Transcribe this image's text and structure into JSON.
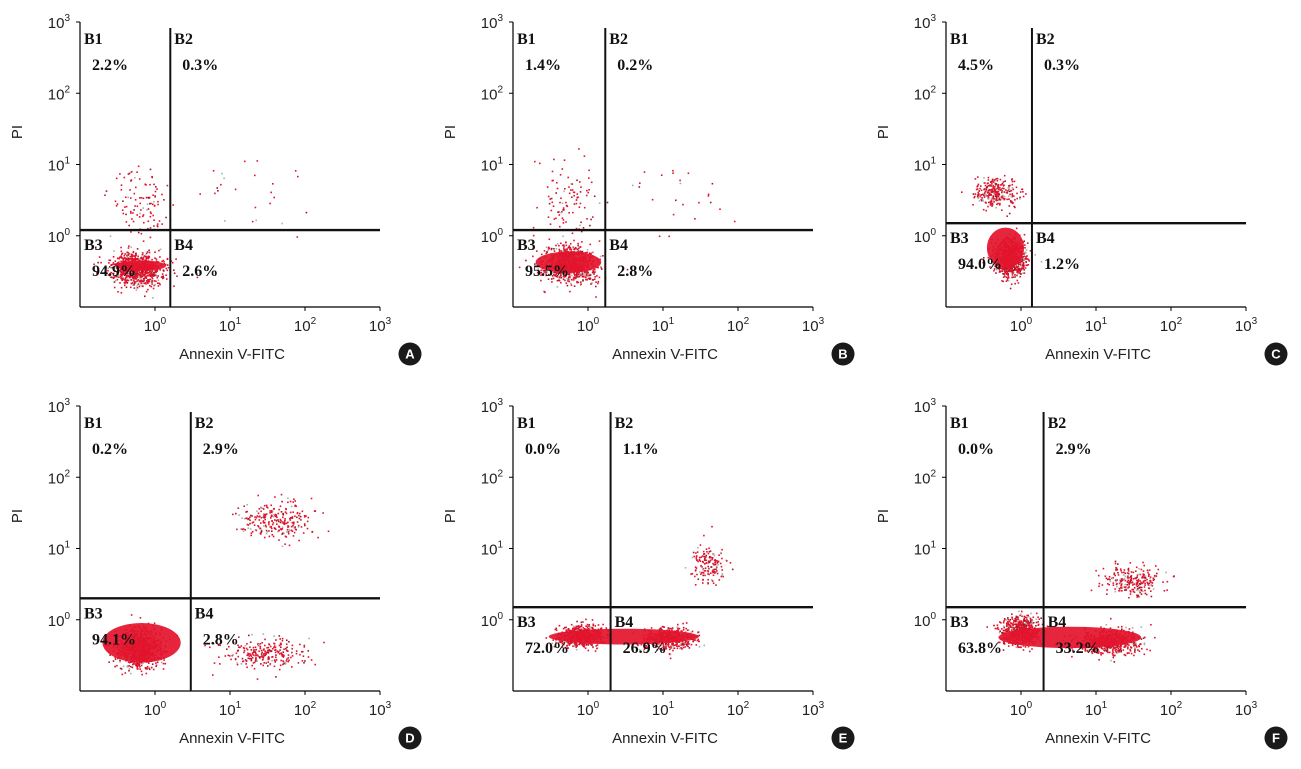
{
  "chart_data": [
    {
      "type": "scatter",
      "panel": "A",
      "xlabel": "Annexin V-FITC",
      "ylabel": "PI",
      "xscale": "log",
      "yscale": "log",
      "xlim": [
        0.1,
        1000
      ],
      "ylim": [
        0.1,
        1000
      ],
      "xticks": [
        "10^0",
        "10^1",
        "10^2",
        "10^3"
      ],
      "yticks": [
        "10^0",
        "10^1",
        "10^2",
        "10^3"
      ],
      "gates": {
        "x": 1.6,
        "y": 1.2
      },
      "quadrants": [
        {
          "name": "B1",
          "percent": "2.2%"
        },
        {
          "name": "B2",
          "percent": "0.3%"
        },
        {
          "name": "B3",
          "percent": "94.9%"
        },
        {
          "name": "B4",
          "percent": "2.6%"
        }
      ],
      "clusters": [
        {
          "cx": 0.55,
          "cy": 0.35,
          "sx": 2.2,
          "sy": 1.7,
          "n": 900
        },
        {
          "cx": 0.6,
          "cy": 3.0,
          "sx": 2.5,
          "sy": 3.0,
          "n": 110
        },
        {
          "cx": 15,
          "cy": 5,
          "sx": 6,
          "sy": 5,
          "n": 25
        }
      ],
      "dense": {
        "x1": 0.3,
        "x2": 1.4,
        "y1": 0.32,
        "y2": 0.45
      }
    },
    {
      "type": "scatter",
      "panel": "B",
      "xlabel": "Annexin V-FITC",
      "ylabel": "PI",
      "xscale": "log",
      "yscale": "log",
      "xlim": [
        0.1,
        1000
      ],
      "ylim": [
        0.1,
        1000
      ],
      "xticks": [
        "10^0",
        "10^1",
        "10^2",
        "10^3"
      ],
      "yticks": [
        "10^0",
        "10^1",
        "10^2",
        "10^3"
      ],
      "gates": {
        "x": 1.7,
        "y": 1.2
      },
      "quadrants": [
        {
          "name": "B1",
          "percent": "1.4%"
        },
        {
          "name": "B2",
          "percent": "0.2%"
        },
        {
          "name": "B3",
          "percent": "95.5%"
        },
        {
          "name": "B4",
          "percent": "2.8%"
        }
      ],
      "clusters": [
        {
          "cx": 0.55,
          "cy": 0.4,
          "sx": 2.3,
          "sy": 1.8,
          "n": 900
        },
        {
          "cx": 0.5,
          "cy": 3.0,
          "sx": 2.5,
          "sy": 3.5,
          "n": 100
        },
        {
          "cx": 12,
          "cy": 3,
          "sx": 6,
          "sy": 5,
          "n": 25
        }
      ],
      "dense": {
        "x1": 0.2,
        "x2": 1.5,
        "y1": 0.3,
        "y2": 0.6
      }
    },
    {
      "type": "scatter",
      "panel": "C",
      "xlabel": "Annexin V-FITC",
      "ylabel": "PI",
      "xscale": "log",
      "yscale": "log",
      "xlim": [
        0.1,
        1000
      ],
      "ylim": [
        0.1,
        1000
      ],
      "xticks": [
        "10^0",
        "10^1",
        "10^2",
        "10^3"
      ],
      "yticks": [
        "10^0",
        "10^1",
        "10^2",
        "10^3"
      ],
      "gates": {
        "x": 1.4,
        "y": 1.5
      },
      "quadrants": [
        {
          "name": "B1",
          "percent": "4.5%"
        },
        {
          "name": "B2",
          "percent": "0.3%"
        },
        {
          "name": "B3",
          "percent": "94.0%"
        },
        {
          "name": "B4",
          "percent": "1.2%"
        }
      ],
      "clusters": [
        {
          "cx": 0.7,
          "cy": 0.5,
          "sx": 1.6,
          "sy": 1.8,
          "n": 900
        },
        {
          "cx": 0.45,
          "cy": 4.0,
          "sx": 2.0,
          "sy": 1.6,
          "n": 300
        }
      ],
      "dense": {
        "x1": 0.35,
        "x2": 1.1,
        "y1": 0.35,
        "y2": 1.3
      }
    },
    {
      "type": "scatter",
      "panel": "D",
      "xlabel": "Annexin V-FITC",
      "ylabel": "PI",
      "xscale": "log",
      "yscale": "log",
      "xlim": [
        0.1,
        1000
      ],
      "ylim": [
        0.1,
        1000
      ],
      "xticks": [
        "10^0",
        "10^1",
        "10^2",
        "10^3"
      ],
      "yticks": [
        "10^0",
        "10^1",
        "10^2",
        "10^3"
      ],
      "gates": {
        "x": 3.0,
        "y": 2.0
      },
      "quadrants": [
        {
          "name": "B1",
          "percent": "0.2%"
        },
        {
          "name": "B2",
          "percent": "2.9%"
        },
        {
          "name": "B3",
          "percent": "94.1%"
        },
        {
          "name": "B4",
          "percent": "2.8%"
        }
      ],
      "clusters": [
        {
          "cx": 0.6,
          "cy": 0.4,
          "sx": 2.0,
          "sy": 1.8,
          "n": 1000
        },
        {
          "cx": 30,
          "cy": 0.35,
          "sx": 3.5,
          "sy": 1.6,
          "n": 260
        },
        {
          "cx": 40,
          "cy": 25,
          "sx": 3.0,
          "sy": 1.8,
          "n": 260
        }
      ],
      "dense": {
        "x1": 0.2,
        "x2": 2.2,
        "y1": 0.25,
        "y2": 0.9
      }
    },
    {
      "type": "scatter",
      "panel": "E",
      "xlabel": "Annexin V-FITC",
      "ylabel": "PI",
      "xscale": "log",
      "yscale": "log",
      "xlim": [
        0.1,
        1000
      ],
      "ylim": [
        0.1,
        1000
      ],
      "xticks": [
        "10^0",
        "10^1",
        "10^2",
        "10^3"
      ],
      "yticks": [
        "10^0",
        "10^1",
        "10^2",
        "10^3"
      ],
      "gates": {
        "x": 2.0,
        "y": 1.5
      },
      "quadrants": [
        {
          "name": "B1",
          "percent": "0.0%"
        },
        {
          "name": "B2",
          "percent": "1.1%"
        },
        {
          "name": "B3",
          "percent": "72.0%"
        },
        {
          "name": "B4",
          "percent": "26.9%"
        }
      ],
      "clusters": [
        {
          "cx": 0.8,
          "cy": 0.6,
          "sx": 2.0,
          "sy": 1.4,
          "n": 700
        },
        {
          "cx": 12,
          "cy": 0.55,
          "sx": 2.2,
          "sy": 1.4,
          "n": 500
        },
        {
          "cx": 40,
          "cy": 6,
          "sx": 1.8,
          "sy": 1.9,
          "n": 150
        }
      ],
      "dense": {
        "x1": 0.3,
        "x2": 30,
        "y1": 0.45,
        "y2": 0.75
      }
    },
    {
      "type": "scatter",
      "panel": "F",
      "xlabel": "Annexin V-FITC",
      "ylabel": "PI",
      "xscale": "log",
      "yscale": "log",
      "xlim": [
        0.1,
        1000
      ],
      "ylim": [
        0.1,
        1000
      ],
      "xticks": [
        "10^0",
        "10^1",
        "10^2",
        "10^3"
      ],
      "yticks": [
        "10^0",
        "10^1",
        "10^2",
        "10^3"
      ],
      "gates": {
        "x": 2.0,
        "y": 1.5
      },
      "quadrants": [
        {
          "name": "B1",
          "percent": "0.0%"
        },
        {
          "name": "B2",
          "percent": "2.9%"
        },
        {
          "name": "B3",
          "percent": "63.8%"
        },
        {
          "name": "B4",
          "percent": "33.2%"
        }
      ],
      "clusters": [
        {
          "cx": 1.0,
          "cy": 0.7,
          "sx": 1.8,
          "sy": 1.6,
          "n": 650
        },
        {
          "cx": 15,
          "cy": 0.5,
          "sx": 2.5,
          "sy": 1.5,
          "n": 650
        },
        {
          "cx": 30,
          "cy": 3.5,
          "sx": 2.5,
          "sy": 1.6,
          "n": 240
        }
      ],
      "dense": {
        "x1": 0.5,
        "x2": 40,
        "y1": 0.4,
        "y2": 0.8
      }
    }
  ],
  "colors": {
    "dot": "#e3132c",
    "dot_dark": "#9c1a2a",
    "dot_gray": "#a6b3ad",
    "axis": "#000000",
    "gate": "#111111",
    "badge": "#1a1a1a"
  }
}
